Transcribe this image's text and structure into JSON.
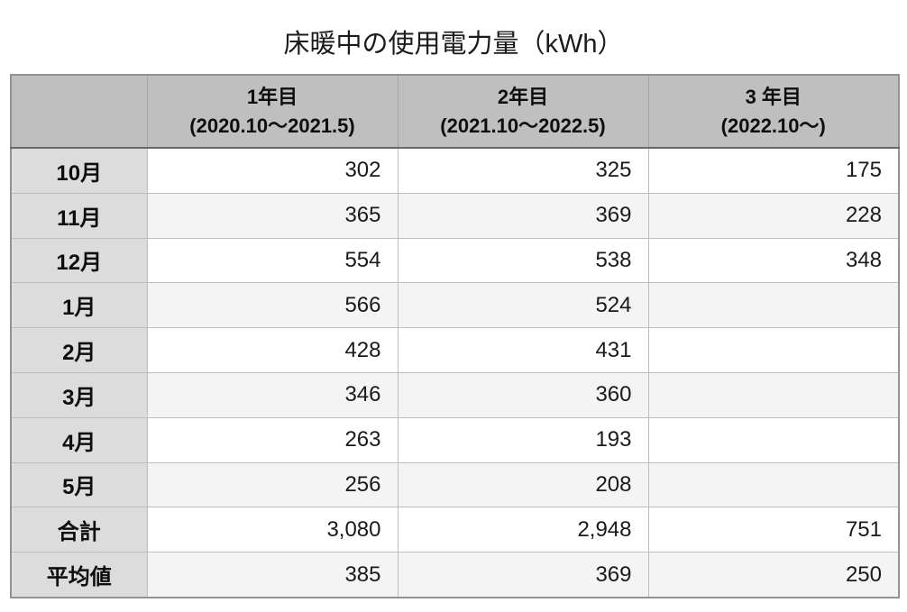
{
  "title": "床暖中の使用電力量（kWh）",
  "table": {
    "columns": [
      {
        "label": "",
        "sub": ""
      },
      {
        "label": "1年目",
        "sub": "(2020.10〜2021.5)"
      },
      {
        "label": "2年目",
        "sub": "(2021.10〜2022.5)"
      },
      {
        "label": "3 年目",
        "sub": "(2022.10〜)"
      }
    ],
    "rows": [
      {
        "label": "10月",
        "values": [
          "302",
          "325",
          "175"
        ]
      },
      {
        "label": "11月",
        "values": [
          "365",
          "369",
          "228"
        ]
      },
      {
        "label": "12月",
        "values": [
          "554",
          "538",
          "348"
        ]
      },
      {
        "label": "1月",
        "values": [
          "566",
          "524",
          ""
        ]
      },
      {
        "label": "2月",
        "values": [
          "428",
          "431",
          ""
        ]
      },
      {
        "label": "3月",
        "values": [
          "346",
          "360",
          ""
        ]
      },
      {
        "label": "4月",
        "values": [
          "263",
          "193",
          ""
        ]
      },
      {
        "label": "5月",
        "values": [
          "256",
          "208",
          ""
        ]
      },
      {
        "label": "合計",
        "values": [
          "3,080",
          "2,948",
          "751"
        ]
      },
      {
        "label": "平均値",
        "values": [
          "385",
          "369",
          "250"
        ]
      }
    ]
  },
  "colors": {
    "header_bg": "#bfbfbf",
    "label_column_bg": "#dcdcdc",
    "stripe_row_bg": "#f4f4f5",
    "plain_row_bg": "#ffffff",
    "outer_border": "#929292",
    "header_bottom_border": "#696969",
    "cell_border": "#bdbdbd",
    "text": "#1a1a1a"
  },
  "chart_data": {
    "type": "table",
    "title": "床暖中の使用電力量（kWh）",
    "categories": [
      "10月",
      "11月",
      "12月",
      "1月",
      "2月",
      "3月",
      "4月",
      "5月",
      "合計",
      "平均値"
    ],
    "series": [
      {
        "name": "1年目 (2020.10〜2021.5)",
        "values": [
          302,
          365,
          554,
          566,
          428,
          346,
          263,
          256,
          3080,
          385
        ]
      },
      {
        "name": "2年目 (2021.10〜2022.5)",
        "values": [
          325,
          369,
          538,
          524,
          431,
          360,
          193,
          208,
          2948,
          369
        ]
      },
      {
        "name": "3 年目 (2022.10〜)",
        "values": [
          175,
          228,
          348,
          null,
          null,
          null,
          null,
          null,
          751,
          250
        ]
      }
    ],
    "ylabel": "kWh",
    "notes": "monthly electricity usage during floor heating; 合計 = total, 平均値 = average; year 3 has data only for Oct–Dec"
  }
}
